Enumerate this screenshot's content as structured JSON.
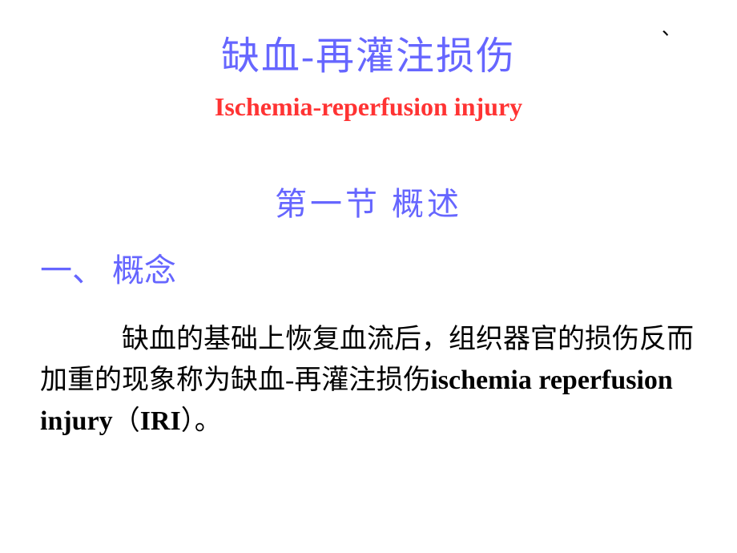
{
  "corner_mark": "、",
  "title": {
    "chinese": "缺血-再灌注损伤",
    "english": "Ischemia-reperfusion injury"
  },
  "section": {
    "label": "第一节    概述"
  },
  "subsection": {
    "label": "一、 概念"
  },
  "body": {
    "text_part1": "缺血的基础上恢复血流后，组织器官的损伤反而加重的现象称为缺血-再灌注损伤",
    "text_bold": "ischemia reperfusion injury",
    "text_part2": "（",
    "text_abbr": "IRI",
    "text_part3": "）。"
  },
  "colors": {
    "title_cn": "#6666ff",
    "title_en": "#ff3333",
    "section": "#6666ff",
    "subsection": "#6666ff",
    "body": "#000000",
    "background": "#ffffff"
  },
  "typography": {
    "title_cn_fontsize": 48,
    "title_en_fontsize": 32,
    "section_fontsize": 40,
    "subsection_fontsize": 40,
    "body_fontsize": 34
  }
}
